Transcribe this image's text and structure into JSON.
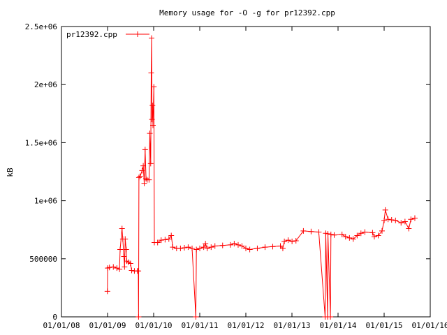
{
  "chart_data": {
    "type": "line",
    "title": "Memory usage for -O -g for pr12392.cpp",
    "xlabel": "",
    "ylabel": "kB",
    "x_tick_labels": [
      "01/01/08",
      "01/01/09",
      "01/01/10",
      "01/01/11",
      "01/01/12",
      "01/01/13",
      "01/01/14",
      "01/01/15",
      "01/01/16"
    ],
    "y_tick_labels": [
      "0",
      "500000",
      "1e+06",
      "1.5e+06",
      "2e+06",
      "2.5e+06"
    ],
    "ylim": [
      0,
      2500000
    ],
    "xlim": [
      "2008-01-01",
      "2016-01-01"
    ],
    "grid": false,
    "legend_position": "top-left",
    "series": [
      {
        "name": "pr12392.cpp",
        "color": "#ff0000",
        "marker": "plus",
        "points": [
          [
            "2008-12-30",
            220000
          ],
          [
            "2009-01-01",
            420000
          ],
          [
            "2009-01-15",
            425000
          ],
          [
            "2009-02-15",
            430000
          ],
          [
            "2009-03-15",
            420000
          ],
          [
            "2009-04-05",
            410000
          ],
          [
            "2009-04-10",
            580000
          ],
          [
            "2009-04-25",
            760000
          ],
          [
            "2009-05-01",
            670000
          ],
          [
            "2009-05-10",
            520000
          ],
          [
            "2009-05-15",
            430000
          ],
          [
            "2009-05-20",
            670000
          ],
          [
            "2009-05-28",
            580000
          ],
          [
            "2009-06-01",
            480000
          ],
          [
            "2009-06-15",
            470000
          ],
          [
            "2009-07-01",
            460000
          ],
          [
            "2009-07-10",
            400000
          ],
          [
            "2009-08-01",
            395000
          ],
          [
            "2009-08-25",
            395000
          ],
          [
            "2009-09-01",
            395000
          ],
          [
            "2009-09-03",
            0
          ],
          [
            "2009-09-06",
            1200000
          ],
          [
            "2009-09-15",
            1210000
          ],
          [
            "2009-10-01",
            1260000
          ],
          [
            "2009-10-10",
            1300000
          ],
          [
            "2009-10-18",
            1150000
          ],
          [
            "2009-10-25",
            1440000
          ],
          [
            "2009-11-01",
            1190000
          ],
          [
            "2009-11-10",
            1180000
          ],
          [
            "2009-11-25",
            1180000
          ],
          [
            "2009-12-01",
            1580000
          ],
          [
            "2009-12-08",
            1320000
          ],
          [
            "2009-12-12",
            2100000
          ],
          [
            "2009-12-15",
            2400000
          ],
          [
            "2009-12-18",
            1700000
          ],
          [
            "2009-12-22",
            1820000
          ],
          [
            "2009-12-26",
            1650000
          ],
          [
            "2010-01-02",
            1980000
          ],
          [
            "2010-01-06",
            640000
          ],
          [
            "2010-02-01",
            640000
          ],
          [
            "2010-03-01",
            660000
          ],
          [
            "2010-04-01",
            665000
          ],
          [
            "2010-05-01",
            670000
          ],
          [
            "2010-05-20",
            700000
          ],
          [
            "2010-06-01",
            600000
          ],
          [
            "2010-07-01",
            590000
          ],
          [
            "2010-08-01",
            590000
          ],
          [
            "2010-09-01",
            595000
          ],
          [
            "2010-10-01",
            600000
          ],
          [
            "2010-11-01",
            590000
          ],
          [
            "2010-12-01",
            0
          ],
          [
            "2010-12-05",
            580000
          ],
          [
            "2011-01-01",
            590000
          ],
          [
            "2011-02-01",
            600000
          ],
          [
            "2011-02-15",
            630000
          ],
          [
            "2011-03-01",
            590000
          ],
          [
            "2011-04-01",
            600000
          ],
          [
            "2011-05-01",
            610000
          ],
          [
            "2011-07-01",
            615000
          ],
          [
            "2011-09-01",
            620000
          ],
          [
            "2011-10-01",
            630000
          ],
          [
            "2011-11-01",
            620000
          ],
          [
            "2011-12-01",
            610000
          ],
          [
            "2012-01-01",
            590000
          ],
          [
            "2012-02-01",
            580000
          ],
          [
            "2012-04-01",
            590000
          ],
          [
            "2012-06-01",
            600000
          ],
          [
            "2012-08-01",
            605000
          ],
          [
            "2012-10-01",
            610000
          ],
          [
            "2012-10-20",
            590000
          ],
          [
            "2012-11-01",
            650000
          ],
          [
            "2012-12-01",
            660000
          ],
          [
            "2013-01-01",
            650000
          ],
          [
            "2013-02-01",
            655000
          ],
          [
            "2013-04-01",
            740000
          ],
          [
            "2013-06-01",
            735000
          ],
          [
            "2013-08-01",
            730000
          ],
          [
            "2013-09-20",
            0
          ],
          [
            "2013-09-25",
            720000
          ],
          [
            "2013-10-10",
            0
          ],
          [
            "2013-10-12",
            715000
          ],
          [
            "2013-11-01",
            0
          ],
          [
            "2013-11-05",
            710000
          ],
          [
            "2013-12-01",
            705000
          ],
          [
            "2014-02-01",
            710000
          ],
          [
            "2014-03-01",
            690000
          ],
          [
            "2014-04-01",
            680000
          ],
          [
            "2014-05-01",
            670000
          ],
          [
            "2014-06-01",
            700000
          ],
          [
            "2014-07-01",
            720000
          ],
          [
            "2014-08-01",
            730000
          ],
          [
            "2014-10-01",
            725000
          ],
          [
            "2014-10-15",
            690000
          ],
          [
            "2014-11-15",
            700000
          ],
          [
            "2014-12-15",
            740000
          ],
          [
            "2015-01-01",
            830000
          ],
          [
            "2015-01-10",
            920000
          ],
          [
            "2015-02-01",
            840000
          ],
          [
            "2015-03-01",
            835000
          ],
          [
            "2015-04-01",
            830000
          ],
          [
            "2015-05-15",
            810000
          ],
          [
            "2015-06-15",
            820000
          ],
          [
            "2015-07-15",
            760000
          ],
          [
            "2015-08-01",
            840000
          ],
          [
            "2015-09-01",
            850000
          ]
        ]
      }
    ]
  }
}
